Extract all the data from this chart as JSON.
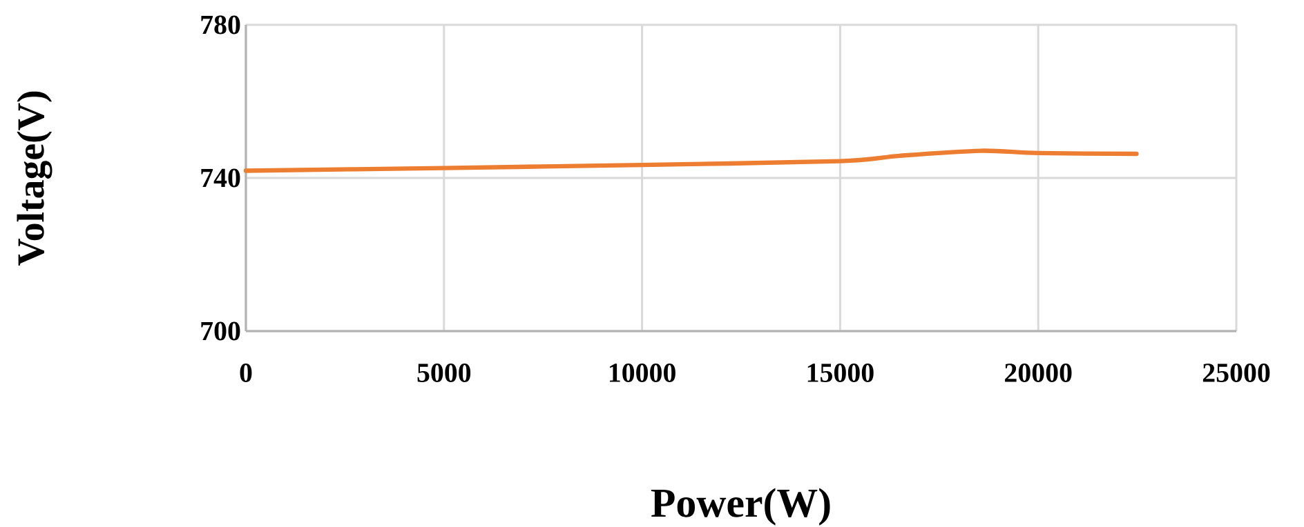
{
  "chart_data": {
    "type": "line",
    "xlabel": "Power(W)",
    "ylabel": "Voltage(V)",
    "series": [
      {
        "color": "#ed7d31",
        "x": [
          0,
          5000,
          10000,
          15000,
          16500,
          18550,
          20000,
          22480
        ],
        "values": [
          741.9,
          742.6,
          743.4,
          744.4,
          745.8,
          747.1,
          746.5,
          746.3
        ]
      }
    ],
    "xlim": [
      0,
      25000
    ],
    "xticks": [
      0,
      5000,
      10000,
      15000,
      20000,
      25000
    ],
    "ylim": [
      700,
      780
    ],
    "yticks": [
      700,
      740,
      780
    ],
    "grid": true,
    "marker": "none",
    "line_style": "solid"
  }
}
